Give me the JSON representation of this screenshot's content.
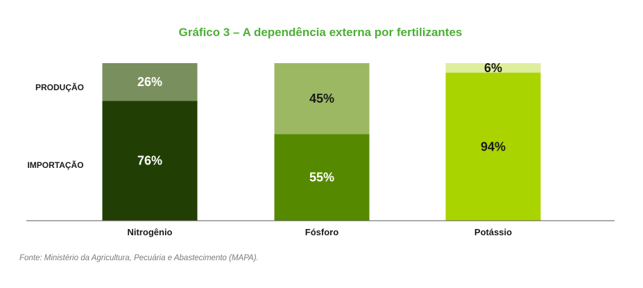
{
  "chart_data": {
    "type": "bar",
    "stacked": true,
    "title": "Gráfico 3 – A dependência externa por fertilizantes",
    "row_labels": [
      "PRODUÇÃO",
      "IMPORTAÇÃO"
    ],
    "categories": [
      "Nitrogênio",
      "Fósforo",
      "Potássio"
    ],
    "series": [
      {
        "values": [
          76,
          55,
          94
        ],
        "labels": [
          "76%",
          "55%",
          "94%"
        ],
        "colors": [
          "#213f05",
          "#558a00",
          "#aad400"
        ]
      },
      {
        "values": [
          26,
          45,
          6
        ],
        "labels": [
          "26%",
          "45%",
          "6%"
        ],
        "colors": [
          "#7a8f5e",
          "#9cb862",
          "#dfee9c"
        ]
      }
    ],
    "ylim": [
      0,
      100
    ],
    "grid": false,
    "legend": "none"
  },
  "source": "Fonte: Ministério da Agricultura, Pecuária e Abastecimento (MAPA).",
  "colors": {
    "title": "#4caf35",
    "axis": "#555555"
  }
}
